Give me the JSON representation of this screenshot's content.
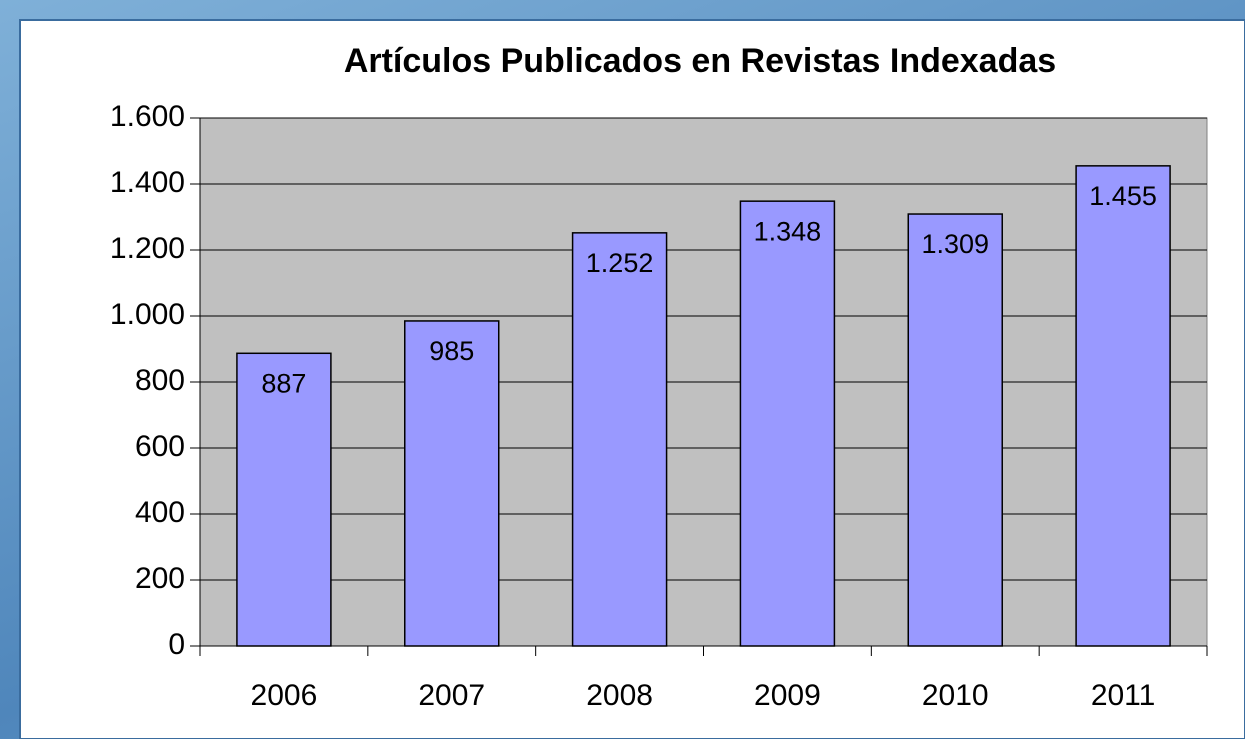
{
  "chart_data": {
    "type": "bar",
    "title": "Artículos Publicados en Revistas Indexadas",
    "categories": [
      "2006",
      "2007",
      "2008",
      "2009",
      "2010",
      "2011"
    ],
    "values": [
      887,
      985,
      1252,
      1348,
      1309,
      1455
    ],
    "value_labels": [
      "887",
      "985",
      "1.252",
      "1.348",
      "1.309",
      "1.455"
    ],
    "color": "#9999ff",
    "ylim": [
      0,
      1600
    ],
    "yticks": [
      0,
      {
        "value": 200,
        "label": "200"
      },
      {
        "value": 400,
        "label": "400"
      },
      {
        "value": 600,
        "label": "600"
      },
      {
        "value": 800,
        "label": "800"
      },
      {
        "value": 1000,
        "label": "1.000"
      },
      {
        "value": 1200,
        "label": "1.200"
      },
      {
        "value": 1400,
        "label": "1.400"
      },
      {
        "value": 1600,
        "label": "1.600"
      }
    ],
    "grid": true
  }
}
